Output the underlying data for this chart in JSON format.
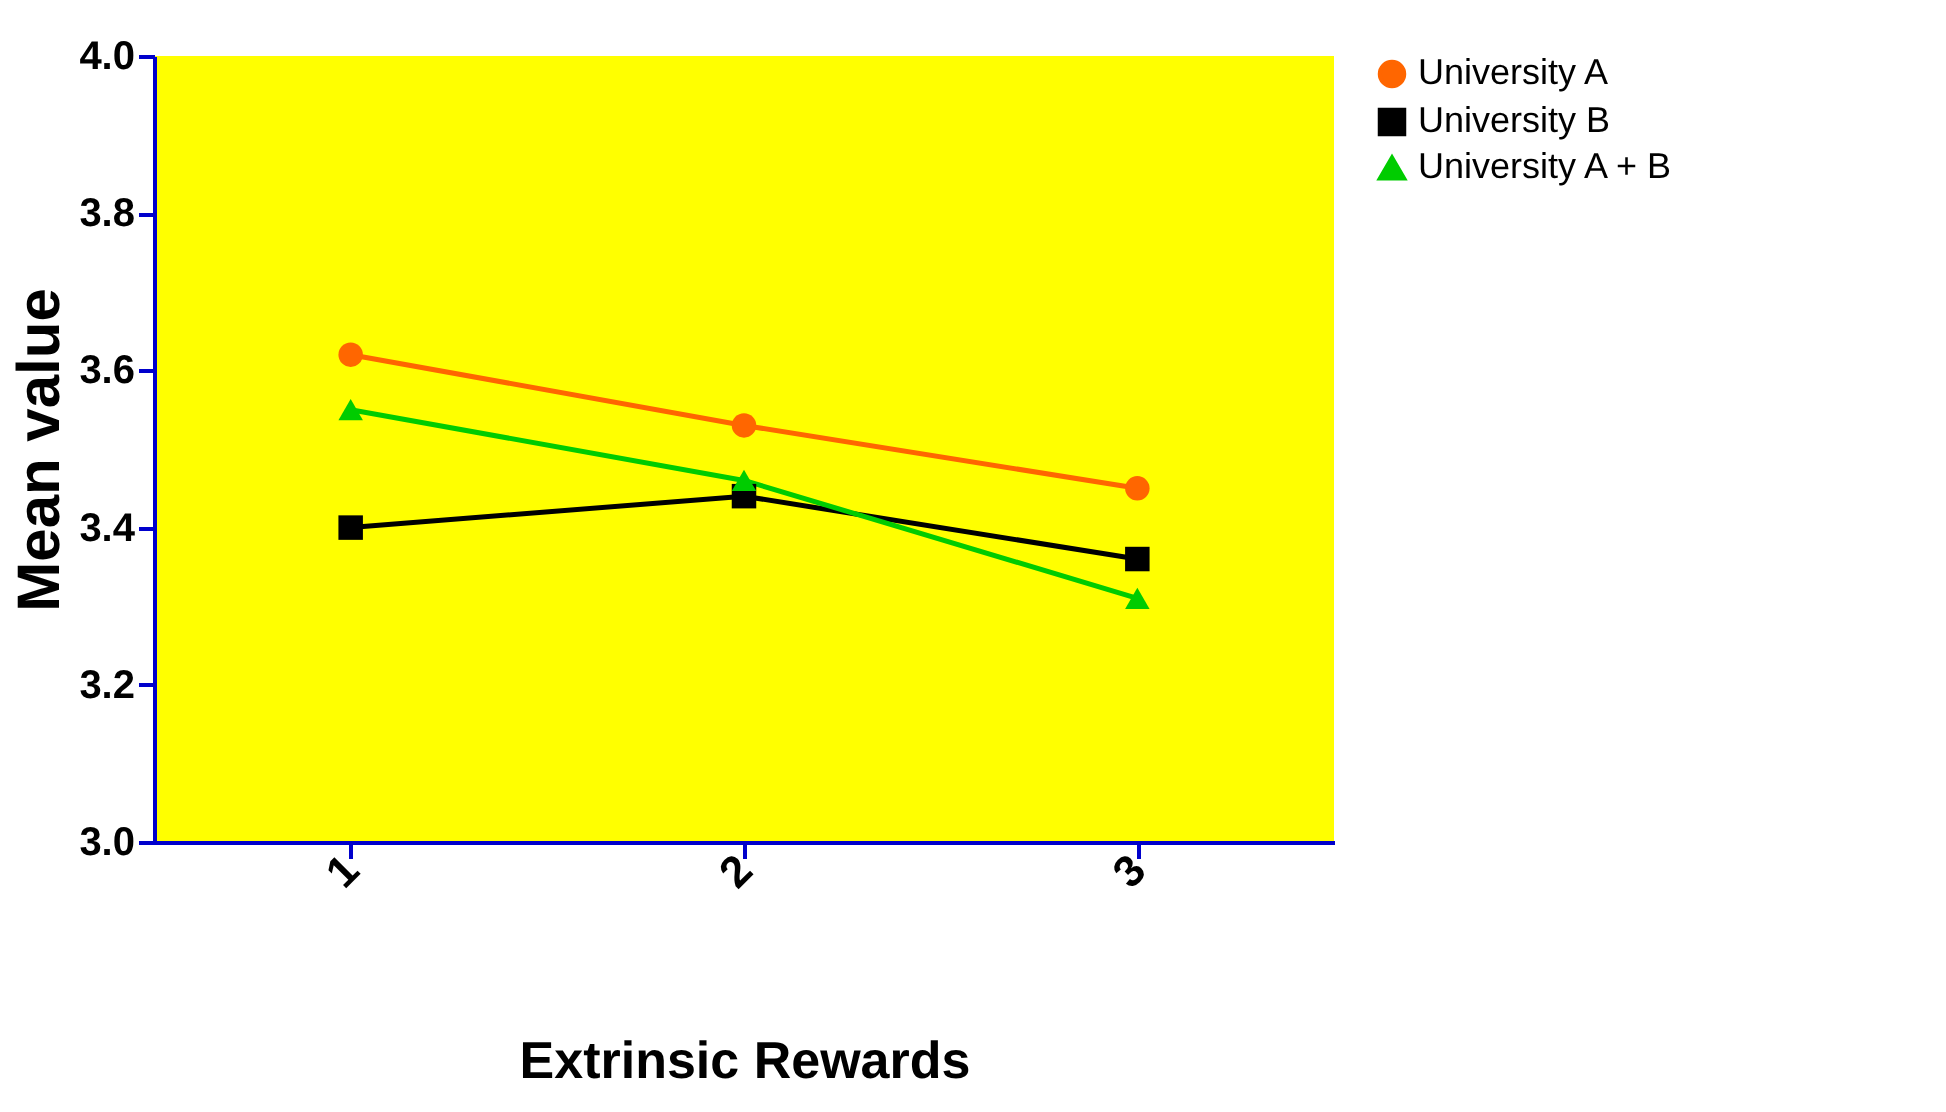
{
  "chart_data": {
    "type": "line",
    "xlabel": "Extrinsic Rewards",
    "ylabel": "Mean value",
    "categories": [
      "1",
      "2",
      "3"
    ],
    "series": [
      {
        "name": "University A",
        "color": "#ff6600",
        "marker": "circle",
        "values": [
          3.62,
          3.53,
          3.45
        ]
      },
      {
        "name": "University B",
        "color": "#000000",
        "marker": "square",
        "values": [
          3.4,
          3.44,
          3.36
        ]
      },
      {
        "name": "University A + B",
        "color": "#00cc00",
        "marker": "triangle",
        "values": [
          3.55,
          3.46,
          3.31
        ]
      }
    ],
    "ylim": [
      3.0,
      4.0
    ],
    "yticks": [
      {
        "value": 3.0,
        "label": "3.0"
      },
      {
        "value": 3.2,
        "label": "3.2"
      },
      {
        "value": 3.4,
        "label": "3.4"
      },
      {
        "value": 3.6,
        "label": "3.6"
      },
      {
        "value": 3.8,
        "label": "3.8"
      },
      {
        "value": 4.0,
        "label": "4.0"
      }
    ],
    "grid": false,
    "legend": "top right",
    "line_style": "solid"
  }
}
